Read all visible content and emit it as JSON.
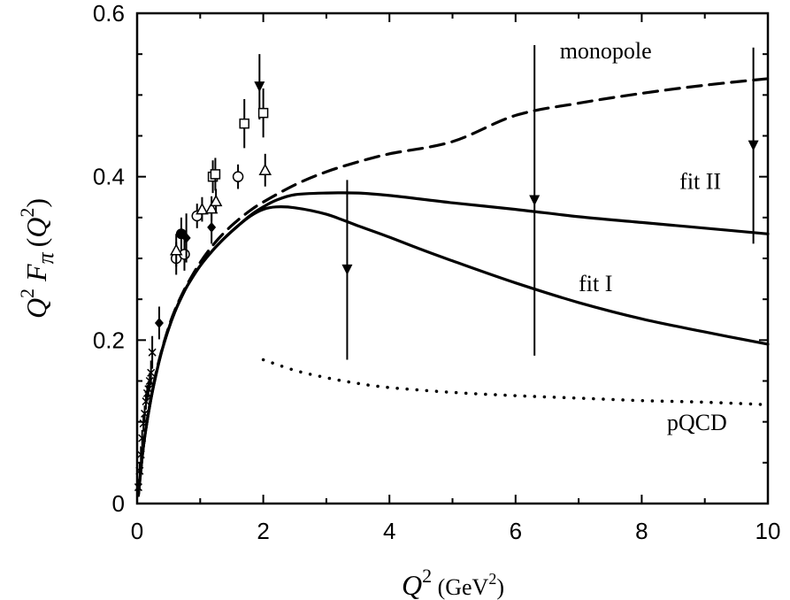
{
  "chart_data": {
    "type": "line",
    "xlabel": {
      "var": "Q",
      "exp": "2",
      "unit_open": " (GeV",
      "unit_exp": "2",
      "unit_close": ")"
    },
    "ylabel": {
      "var1": "Q",
      "exp1": "2",
      "fvar": "F",
      "sub": "π",
      "arg_open": "(",
      "arg_var": "Q",
      "arg_exp": "2",
      "arg_close": ")"
    },
    "xlim": [
      0,
      10
    ],
    "ylim": [
      0,
      0.6
    ],
    "x_ticks": [
      0,
      2,
      4,
      6,
      8,
      10
    ],
    "x_tick_labels": [
      "0",
      "2",
      "4",
      "6",
      "8",
      "10"
    ],
    "y_ticks": [
      0,
      0.2,
      0.4,
      0.6
    ],
    "y_tick_labels": [
      "0",
      "0.2",
      "0.4",
      "0.6"
    ],
    "grid": false,
    "series": [
      {
        "name": "monopole",
        "style": "dashed",
        "x": [
          0.02,
          0.1,
          0.2,
          0.3,
          0.4,
          0.5,
          0.6,
          0.7,
          0.8,
          1.0,
          1.2,
          1.4,
          1.6,
          1.8,
          2.0,
          2.5,
          3.0,
          3.5,
          4.0,
          5.0,
          6.0,
          7.0,
          8.0,
          9.0,
          10.0
        ],
        "y": [
          0.01,
          0.07,
          0.121,
          0.16,
          0.19,
          0.216,
          0.237,
          0.254,
          0.269,
          0.295,
          0.316,
          0.333,
          0.347,
          0.359,
          0.369,
          0.39,
          0.406,
          0.418,
          0.428,
          0.443,
          0.475,
          0.49,
          0.502,
          0.512,
          0.52
        ]
      },
      {
        "name": "fit II",
        "style": "solid",
        "x": [
          0.02,
          0.1,
          0.2,
          0.3,
          0.4,
          0.5,
          0.6,
          0.7,
          0.8,
          1.0,
          1.2,
          1.4,
          1.6,
          1.8,
          2.0,
          2.2,
          2.5,
          3.0,
          3.5,
          4.0,
          5.0,
          6.0,
          7.0,
          8.0,
          9.0,
          10.0
        ],
        "y": [
          0.01,
          0.07,
          0.12,
          0.158,
          0.189,
          0.214,
          0.235,
          0.252,
          0.267,
          0.291,
          0.31,
          0.326,
          0.34,
          0.353,
          0.363,
          0.371,
          0.378,
          0.38,
          0.38,
          0.377,
          0.368,
          0.36,
          0.351,
          0.344,
          0.337,
          0.33
        ]
      },
      {
        "name": "fit I",
        "style": "solid",
        "x": [
          0.02,
          0.1,
          0.2,
          0.3,
          0.4,
          0.5,
          0.6,
          0.7,
          0.8,
          1.0,
          1.2,
          1.4,
          1.6,
          1.8,
          2.0,
          2.2,
          2.5,
          3.0,
          3.5,
          4.0,
          4.5,
          5.0,
          6.0,
          7.0,
          8.0,
          9.0,
          10.0
        ],
        "y": [
          0.01,
          0.07,
          0.12,
          0.158,
          0.189,
          0.214,
          0.235,
          0.252,
          0.267,
          0.291,
          0.31,
          0.326,
          0.34,
          0.352,
          0.36,
          0.363,
          0.362,
          0.354,
          0.34,
          0.326,
          0.311,
          0.297,
          0.27,
          0.246,
          0.226,
          0.21,
          0.195
        ]
      },
      {
        "name": "pQCD",
        "style": "dotted",
        "x": [
          2.0,
          2.5,
          3.0,
          3.5,
          4.0,
          5.0,
          6.0,
          7.0,
          8.0,
          9.0,
          10.0
        ],
        "y": [
          0.176,
          0.163,
          0.154,
          0.147,
          0.142,
          0.136,
          0.132,
          0.129,
          0.126,
          0.124,
          0.121
        ]
      }
    ],
    "annotations": [
      {
        "text": "monopole",
        "x": 6.7,
        "y": 0.545
      },
      {
        "text": "fit II",
        "x": 8.6,
        "y": 0.385
      },
      {
        "text": "fit I",
        "x": 7.0,
        "y": 0.26
      },
      {
        "text": "pQCD",
        "x": 8.4,
        "y": 0.09
      }
    ],
    "data_points": [
      {
        "marker": "triangle-down",
        "x": 1.94,
        "y": 0.51,
        "err": 0.04
      },
      {
        "marker": "triangle-down",
        "x": 3.33,
        "y": 0.286,
        "err": 0.11
      },
      {
        "marker": "triangle-down",
        "x": 6.3,
        "y": 0.371,
        "err": 0.19
      },
      {
        "marker": "triangle-down",
        "x": 9.77,
        "y": 0.438,
        "err": 0.12
      },
      {
        "marker": "square-open",
        "x": 1.7,
        "y": 0.465,
        "err": 0.03
      },
      {
        "marker": "square-open",
        "x": 2.0,
        "y": 0.478,
        "err": 0.03
      },
      {
        "marker": "square-open",
        "x": 1.2,
        "y": 0.4,
        "err": 0.02
      },
      {
        "marker": "square-open",
        "x": 1.24,
        "y": 0.403,
        "err": 0.02
      },
      {
        "marker": "circle-open",
        "x": 0.62,
        "y": 0.3,
        "err": 0.02
      },
      {
        "marker": "circle-open",
        "x": 0.95,
        "y": 0.352,
        "err": 0.015
      },
      {
        "marker": "circle-open",
        "x": 1.6,
        "y": 0.4,
        "err": 0.015
      },
      {
        "marker": "circle-open",
        "x": 0.75,
        "y": 0.305,
        "err": 0.02
      },
      {
        "marker": "circle-filled",
        "x": 0.7,
        "y": 0.33,
        "err": 0.02
      },
      {
        "marker": "diamond-filled",
        "x": 0.35,
        "y": 0.221,
        "err": 0.02
      },
      {
        "marker": "diamond-filled",
        "x": 0.78,
        "y": 0.325,
        "err": 0.03
      },
      {
        "marker": "diamond-filled",
        "x": 1.18,
        "y": 0.338,
        "err": 0.02
      },
      {
        "marker": "triangle-open",
        "x": 0.62,
        "y": 0.31,
        "err": 0.02
      },
      {
        "marker": "triangle-open",
        "x": 1.03,
        "y": 0.36,
        "err": 0.015
      },
      {
        "marker": "triangle-open",
        "x": 1.18,
        "y": 0.361,
        "err": 0.015
      },
      {
        "marker": "triangle-open",
        "x": 1.25,
        "y": 0.37,
        "err": 0.015
      },
      {
        "marker": "triangle-open",
        "x": 2.03,
        "y": 0.408,
        "err": 0.02
      },
      {
        "marker": "cross",
        "x": 0.02,
        "y": 0.02,
        "err": 0.01
      },
      {
        "marker": "cross",
        "x": 0.04,
        "y": 0.04,
        "err": 0.01
      },
      {
        "marker": "cross",
        "x": 0.06,
        "y": 0.06,
        "err": 0.01
      },
      {
        "marker": "cross",
        "x": 0.08,
        "y": 0.08,
        "err": 0.01
      },
      {
        "marker": "cross",
        "x": 0.1,
        "y": 0.098,
        "err": 0.01
      },
      {
        "marker": "cross",
        "x": 0.12,
        "y": 0.11,
        "err": 0.01
      },
      {
        "marker": "cross",
        "x": 0.14,
        "y": 0.125,
        "err": 0.01
      },
      {
        "marker": "cross",
        "x": 0.16,
        "y": 0.135,
        "err": 0.01
      },
      {
        "marker": "cross",
        "x": 0.18,
        "y": 0.14,
        "err": 0.01
      },
      {
        "marker": "cross",
        "x": 0.2,
        "y": 0.15,
        "err": 0.01
      },
      {
        "marker": "cross",
        "x": 0.22,
        "y": 0.16,
        "err": 0.015
      },
      {
        "marker": "cross",
        "x": 0.24,
        "y": 0.185,
        "err": 0.02
      }
    ]
  }
}
